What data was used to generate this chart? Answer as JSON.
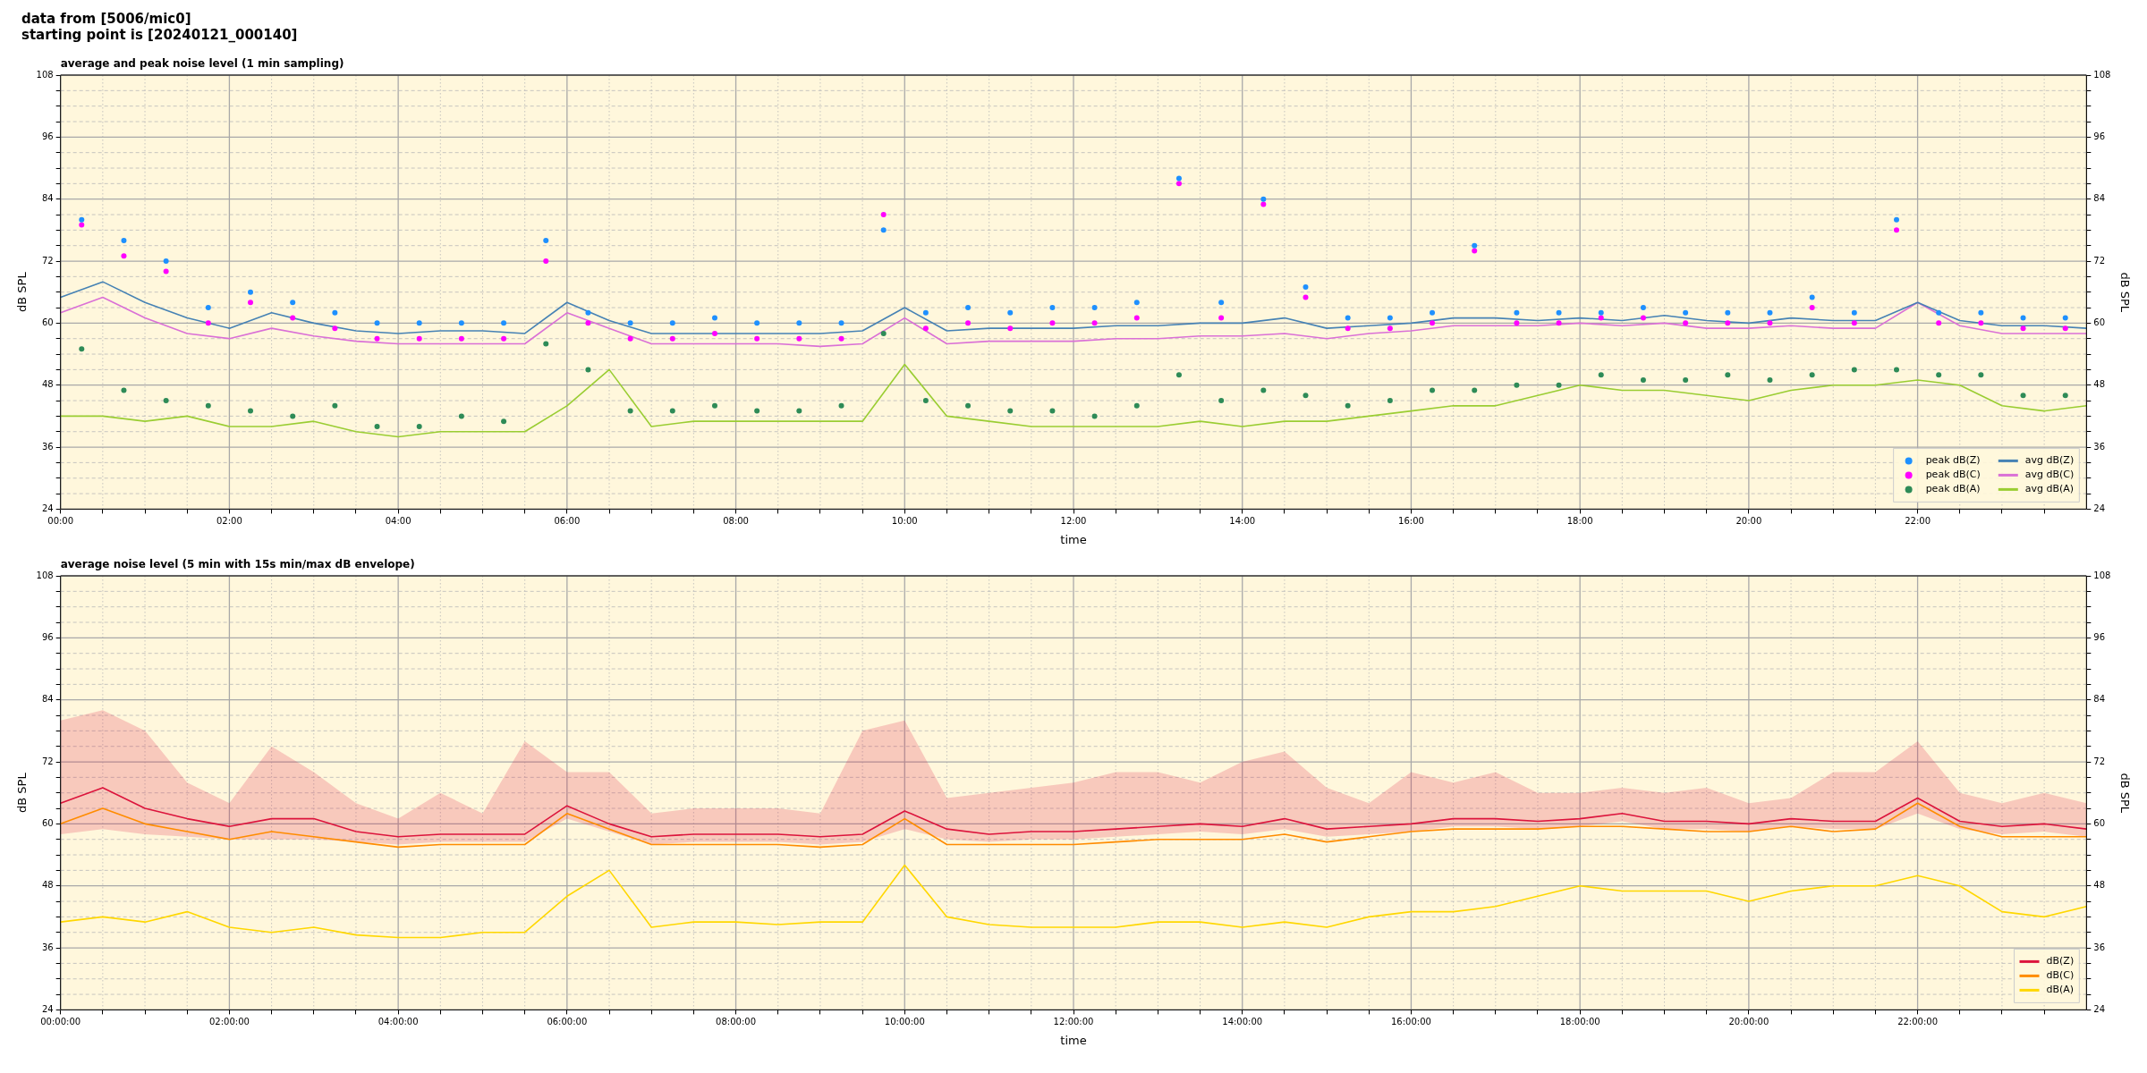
{
  "chart_data": [
    {
      "type": "line",
      "title": "average and peak noise level (1 min sampling)",
      "annotations": [
        "data from [5006/mic0]",
        "starting point is [20240121_000140]"
      ],
      "xlabel": "time",
      "ylabel": "dB SPL",
      "y2label": "dB SPL",
      "x": [
        0,
        0.5,
        1,
        1.5,
        2,
        2.5,
        3,
        3.5,
        4,
        4.5,
        5,
        5.5,
        6,
        6.5,
        7,
        7.5,
        8,
        8.5,
        9,
        9.5,
        10,
        10.5,
        11,
        11.5,
        12,
        12.5,
        13,
        13.5,
        14,
        14.5,
        15,
        15.5,
        16,
        16.5,
        17,
        17.5,
        18,
        18.5,
        19,
        19.5,
        20,
        20.5,
        21,
        21.5,
        22,
        22.5,
        23,
        23.5,
        24
      ],
      "xlim": [
        0,
        24
      ],
      "ylim": [
        24,
        108
      ],
      "y2lim": [
        24,
        108
      ],
      "xticks": [
        {
          "value": 0,
          "label": "00:00"
        },
        {
          "value": 0.5,
          "label": null
        },
        {
          "value": 1,
          "label": null
        },
        {
          "value": 1.5,
          "label": null
        },
        {
          "value": 2,
          "label": "02:00"
        },
        {
          "value": 2.5,
          "label": null
        },
        {
          "value": 3,
          "label": null
        },
        {
          "value": 3.5,
          "label": null
        },
        {
          "value": 4,
          "label": "04:00"
        },
        {
          "value": 4.5,
          "label": null
        },
        {
          "value": 5,
          "label": null
        },
        {
          "value": 5.5,
          "label": null
        },
        {
          "value": 6,
          "label": "06:00"
        },
        {
          "value": 6.5,
          "label": null
        },
        {
          "value": 7,
          "label": null
        },
        {
          "value": 7.5,
          "label": null
        },
        {
          "value": 8,
          "label": "08:00"
        },
        {
          "value": 8.5,
          "label": null
        },
        {
          "value": 9,
          "label": null
        },
        {
          "value": 9.5,
          "label": null
        },
        {
          "value": 10,
          "label": "10:00"
        },
        {
          "value": 10.5,
          "label": null
        },
        {
          "value": 11,
          "label": null
        },
        {
          "value": 11.5,
          "label": null
        },
        {
          "value": 12,
          "label": "12:00"
        },
        {
          "value": 12.5,
          "label": null
        },
        {
          "value": 13,
          "label": null
        },
        {
          "value": 13.5,
          "label": null
        },
        {
          "value": 14,
          "label": "14:00"
        },
        {
          "value": 14.5,
          "label": null
        },
        {
          "value": 15,
          "label": null
        },
        {
          "value": 15.5,
          "label": null
        },
        {
          "value": 16,
          "label": "16:00"
        },
        {
          "value": 16.5,
          "label": null
        },
        {
          "value": 17,
          "label": null
        },
        {
          "value": 17.5,
          "label": null
        },
        {
          "value": 18,
          "label": "18:00"
        },
        {
          "value": 18.5,
          "label": null
        },
        {
          "value": 19,
          "label": null
        },
        {
          "value": 19.5,
          "label": null
        },
        {
          "value": 20,
          "label": "20:00"
        },
        {
          "value": 20.5,
          "label": null
        },
        {
          "value": 21,
          "label": null
        },
        {
          "value": 21.5,
          "label": null
        },
        {
          "value": 22,
          "label": "22:00"
        },
        {
          "value": 22.5,
          "label": null
        },
        {
          "value": 23,
          "label": null
        },
        {
          "value": 23.5,
          "label": null
        }
      ],
      "yticks": [
        24,
        {
          "value": 27,
          "label": null
        },
        {
          "value": 30,
          "label": null
        },
        {
          "value": 33,
          "label": null
        },
        36,
        {
          "value": 39,
          "label": null
        },
        {
          "value": 42,
          "label": null
        },
        {
          "value": 45,
          "label": null
        },
        48,
        {
          "value": 51,
          "label": null
        },
        {
          "value": 54,
          "label": null
        },
        {
          "value": 57,
          "label": null
        },
        60,
        {
          "value": 63,
          "label": null
        },
        {
          "value": 66,
          "label": null
        },
        {
          "value": 69,
          "label": null
        },
        72,
        {
          "value": 75,
          "label": null
        },
        {
          "value": 78,
          "label": null
        },
        {
          "value": 81,
          "label": null
        },
        84,
        {
          "value": 87,
          "label": null
        },
        {
          "value": 90,
          "label": null
        },
        {
          "value": 93,
          "label": null
        },
        96,
        {
          "value": 99,
          "label": null
        },
        {
          "value": 102,
          "label": null
        },
        {
          "value": 105,
          "label": null
        },
        108
      ],
      "y2ticks": [
        24,
        {
          "value": 27,
          "label": null
        },
        {
          "value": 30,
          "label": null
        },
        {
          "value": 33,
          "label": null
        },
        36,
        {
          "value": 39,
          "label": null
        },
        {
          "value": 42,
          "label": null
        },
        {
          "value": 45,
          "label": null
        },
        48,
        {
          "value": 51,
          "label": null
        },
        {
          "value": 54,
          "label": null
        },
        {
          "value": 57,
          "label": null
        },
        60,
        {
          "value": 63,
          "label": null
        },
        {
          "value": 66,
          "label": null
        },
        {
          "value": 69,
          "label": null
        },
        72,
        {
          "value": 75,
          "label": null
        },
        {
          "value": 78,
          "label": null
        },
        {
          "value": 81,
          "label": null
        },
        84,
        {
          "value": 87,
          "label": null
        },
        {
          "value": 90,
          "label": null
        },
        {
          "value": 93,
          "label": null
        },
        96,
        {
          "value": 99,
          "label": null
        },
        {
          "value": 102,
          "label": null
        },
        {
          "value": 105,
          "label": null
        },
        108
      ],
      "grid": true,
      "legend": "bottom right",
      "series": [
        {
          "name": "peak dB(Z)",
          "type": "scatter",
          "marker": "circle",
          "color": "#1e90ff",
          "x": [
            0.25,
            0.75,
            1.25,
            1.75,
            2.25,
            2.75,
            3.25,
            3.75,
            4.25,
            4.75,
            5.25,
            5.75,
            6.25,
            6.75,
            7.25,
            7.75,
            8.25,
            8.75,
            9.25,
            9.75,
            10.25,
            10.75,
            11.25,
            11.75,
            12.25,
            12.75,
            13.25,
            13.75,
            14.25,
            14.75,
            15.25,
            15.75,
            16.25,
            16.75,
            17.25,
            17.75,
            18.25,
            18.75,
            19.25,
            19.75,
            20.25,
            20.75,
            21.25,
            21.75,
            22.25,
            22.75,
            23.25,
            23.75
          ],
          "values": [
            80,
            76,
            72,
            63,
            66,
            64,
            62,
            60,
            60,
            60,
            60,
            76,
            62,
            60,
            60,
            61,
            60,
            60,
            60,
            78,
            62,
            63,
            62,
            63,
            63,
            64,
            88,
            64,
            84,
            67,
            61,
            61,
            62,
            75,
            62,
            62,
            62,
            63,
            62,
            62,
            62,
            65,
            62,
            80,
            62,
            62,
            61,
            61
          ]
        },
        {
          "name": "peak dB(C)",
          "type": "scatter",
          "marker": "circle",
          "color": "#ff00ff",
          "x": [
            0.25,
            0.75,
            1.25,
            1.75,
            2.25,
            2.75,
            3.25,
            3.75,
            4.25,
            4.75,
            5.25,
            5.75,
            6.25,
            6.75,
            7.25,
            7.75,
            8.25,
            8.75,
            9.25,
            9.75,
            10.25,
            10.75,
            11.25,
            11.75,
            12.25,
            12.75,
            13.25,
            13.75,
            14.25,
            14.75,
            15.25,
            15.75,
            16.25,
            16.75,
            17.25,
            17.75,
            18.25,
            18.75,
            19.25,
            19.75,
            20.25,
            20.75,
            21.25,
            21.75,
            22.25,
            22.75,
            23.25,
            23.75
          ],
          "values": [
            79,
            73,
            70,
            60,
            64,
            61,
            59,
            57,
            57,
            57,
            57,
            72,
            60,
            57,
            57,
            58,
            57,
            57,
            57,
            81,
            59,
            60,
            59,
            60,
            60,
            61,
            87,
            61,
            83,
            65,
            59,
            59,
            60,
            74,
            60,
            60,
            61,
            61,
            60,
            60,
            60,
            63,
            60,
            78,
            60,
            60,
            59,
            59
          ]
        },
        {
          "name": "peak dB(A)",
          "type": "scatter",
          "marker": "circle",
          "color": "#2e8b57",
          "x": [
            0.25,
            0.75,
            1.25,
            1.75,
            2.25,
            2.75,
            3.25,
            3.75,
            4.25,
            4.75,
            5.25,
            5.75,
            6.25,
            6.75,
            7.25,
            7.75,
            8.25,
            8.75,
            9.25,
            9.75,
            10.25,
            10.75,
            11.25,
            11.75,
            12.25,
            12.75,
            13.25,
            13.75,
            14.25,
            14.75,
            15.25,
            15.75,
            16.25,
            16.75,
            17.25,
            17.75,
            18.25,
            18.75,
            19.25,
            19.75,
            20.25,
            20.75,
            21.25,
            21.75,
            22.25,
            22.75,
            23.25,
            23.75
          ],
          "values": [
            55,
            47,
            45,
            44,
            43,
            42,
            44,
            40,
            40,
            42,
            41,
            56,
            51,
            43,
            43,
            44,
            43,
            43,
            44,
            58,
            45,
            44,
            43,
            43,
            42,
            44,
            50,
            45,
            47,
            46,
            44,
            45,
            47,
            47,
            48,
            48,
            50,
            49,
            49,
            50,
            49,
            50,
            51,
            51,
            50,
            50,
            46,
            46
          ]
        },
        {
          "name": "avg dB(Z)",
          "type": "line",
          "color": "#4682b4",
          "values": [
            65,
            68,
            64,
            61,
            59,
            62,
            60,
            58.5,
            58,
            58.5,
            58.5,
            58,
            64,
            60.5,
            58,
            58,
            58,
            58,
            58,
            58.5,
            63,
            58.5,
            59,
            59,
            59,
            59.5,
            59.5,
            60,
            60,
            61,
            59,
            59.5,
            60,
            61,
            61,
            60.5,
            61,
            60.5,
            61.5,
            60.5,
            60,
            61,
            60.5,
            60.5,
            64,
            60.5,
            59.5,
            59.5,
            59
          ]
        },
        {
          "name": "avg dB(C)",
          "type": "line",
          "color": "#da70d6",
          "values": [
            62,
            65,
            61,
            58,
            57,
            59,
            57.5,
            56.5,
            56,
            56,
            56,
            56,
            62,
            59,
            56,
            56,
            56,
            56,
            55.5,
            56,
            61,
            56,
            56.5,
            56.5,
            56.5,
            57,
            57,
            57.5,
            57.5,
            58,
            57,
            58,
            58.5,
            59.5,
            59.5,
            59.5,
            60,
            59.5,
            60,
            59,
            59,
            59.5,
            59,
            59,
            64,
            59.5,
            58,
            58,
            58
          ]
        },
        {
          "name": "avg dB(A)",
          "type": "line",
          "color": "#9acd32",
          "values": [
            42,
            42,
            41,
            42,
            40,
            40,
            41,
            39,
            38,
            39,
            39,
            39,
            44,
            51,
            40,
            41,
            41,
            41,
            41,
            41,
            52,
            42,
            41,
            40,
            40,
            40,
            40,
            41,
            40,
            41,
            41,
            42,
            43,
            44,
            44,
            46,
            48,
            47,
            47,
            46,
            45,
            47,
            48,
            48,
            49,
            48,
            44,
            43,
            44
          ]
        }
      ]
    },
    {
      "type": "line",
      "title": "average noise level (5 min with 15s min/max dB envelope)",
      "xlabel": "time",
      "ylabel": "dB SPL",
      "y2label": "dB SPL",
      "x": [
        0,
        0.5,
        1,
        1.5,
        2,
        2.5,
        3,
        3.5,
        4,
        4.5,
        5,
        5.5,
        6,
        6.5,
        7,
        7.5,
        8,
        8.5,
        9,
        9.5,
        10,
        10.5,
        11,
        11.5,
        12,
        12.5,
        13,
        13.5,
        14,
        14.5,
        15,
        15.5,
        16,
        16.5,
        17,
        17.5,
        18,
        18.5,
        19,
        19.5,
        20,
        20.5,
        21,
        21.5,
        22,
        22.5,
        23,
        23.5,
        24
      ],
      "xlim": [
        0,
        24
      ],
      "ylim": [
        24,
        108
      ],
      "y2lim": [
        24,
        108
      ],
      "xticks": [
        {
          "value": 0,
          "label": "00:00:00"
        },
        {
          "value": 0.5,
          "label": null
        },
        {
          "value": 1,
          "label": null
        },
        {
          "value": 1.5,
          "label": null
        },
        {
          "value": 2,
          "label": "02:00:00"
        },
        {
          "value": 2.5,
          "label": null
        },
        {
          "value": 3,
          "label": null
        },
        {
          "value": 3.5,
          "label": null
        },
        {
          "value": 4,
          "label": "04:00:00"
        },
        {
          "value": 4.5,
          "label": null
        },
        {
          "value": 5,
          "label": null
        },
        {
          "value": 5.5,
          "label": null
        },
        {
          "value": 6,
          "label": "06:00:00"
        },
        {
          "value": 6.5,
          "label": null
        },
        {
          "value": 7,
          "label": null
        },
        {
          "value": 7.5,
          "label": null
        },
        {
          "value": 8,
          "label": "08:00:00"
        },
        {
          "value": 8.5,
          "label": null
        },
        {
          "value": 9,
          "label": null
        },
        {
          "value": 9.5,
          "label": null
        },
        {
          "value": 10,
          "label": "10:00:00"
        },
        {
          "value": 10.5,
          "label": null
        },
        {
          "value": 11,
          "label": null
        },
        {
          "value": 11.5,
          "label": null
        },
        {
          "value": 12,
          "label": "12:00:00"
        },
        {
          "value": 12.5,
          "label": null
        },
        {
          "value": 13,
          "label": null
        },
        {
          "value": 13.5,
          "label": null
        },
        {
          "value": 14,
          "label": "14:00:00"
        },
        {
          "value": 14.5,
          "label": null
        },
        {
          "value": 15,
          "label": null
        },
        {
          "value": 15.5,
          "label": null
        },
        {
          "value": 16,
          "label": "16:00:00"
        },
        {
          "value": 16.5,
          "label": null
        },
        {
          "value": 17,
          "label": null
        },
        {
          "value": 17.5,
          "label": null
        },
        {
          "value": 18,
          "label": "18:00:00"
        },
        {
          "value": 18.5,
          "label": null
        },
        {
          "value": 19,
          "label": null
        },
        {
          "value": 19.5,
          "label": null
        },
        {
          "value": 20,
          "label": "20:00:00"
        },
        {
          "value": 20.5,
          "label": null
        },
        {
          "value": 21,
          "label": null
        },
        {
          "value": 21.5,
          "label": null
        },
        {
          "value": 22,
          "label": "22:00:00"
        },
        {
          "value": 22.5,
          "label": null
        },
        {
          "value": 23,
          "label": null
        },
        {
          "value": 23.5,
          "label": null
        }
      ],
      "yticks": [
        24,
        {
          "value": 27,
          "label": null
        },
        {
          "value": 30,
          "label": null
        },
        {
          "value": 33,
          "label": null
        },
        36,
        {
          "value": 39,
          "label": null
        },
        {
          "value": 42,
          "label": null
        },
        {
          "value": 45,
          "label": null
        },
        48,
        {
          "value": 51,
          "label": null
        },
        {
          "value": 54,
          "label": null
        },
        {
          "value": 57,
          "label": null
        },
        60,
        {
          "value": 63,
          "label": null
        },
        {
          "value": 66,
          "label": null
        },
        {
          "value": 69,
          "label": null
        },
        72,
        {
          "value": 75,
          "label": null
        },
        {
          "value": 78,
          "label": null
        },
        {
          "value": 81,
          "label": null
        },
        84,
        {
          "value": 87,
          "label": null
        },
        {
          "value": 90,
          "label": null
        },
        {
          "value": 93,
          "label": null
        },
        96,
        {
          "value": 99,
          "label": null
        },
        {
          "value": 102,
          "label": null
        },
        {
          "value": 105,
          "label": null
        },
        108
      ],
      "y2ticks": [
        24,
        {
          "value": 27,
          "label": null
        },
        {
          "value": 30,
          "label": null
        },
        {
          "value": 33,
          "label": null
        },
        36,
        {
          "value": 39,
          "label": null
        },
        {
          "value": 42,
          "label": null
        },
        {
          "value": 45,
          "label": null
        },
        48,
        {
          "value": 51,
          "label": null
        },
        {
          "value": 54,
          "label": null
        },
        {
          "value": 57,
          "label": null
        },
        60,
        {
          "value": 63,
          "label": null
        },
        {
          "value": 66,
          "label": null
        },
        {
          "value": 69,
          "label": null
        },
        72,
        {
          "value": 75,
          "label": null
        },
        {
          "value": 78,
          "label": null
        },
        {
          "value": 81,
          "label": null
        },
        84,
        {
          "value": 87,
          "label": null
        },
        {
          "value": 90,
          "label": null
        },
        {
          "value": 93,
          "label": null
        },
        96,
        {
          "value": 99,
          "label": null
        },
        {
          "value": 102,
          "label": null
        },
        {
          "value": 105,
          "label": null
        },
        108
      ],
      "grid": true,
      "legend": "bottom right",
      "series": [
        {
          "name": "dB(Z)",
          "color": "#dc143c",
          "values": [
            64,
            67,
            63,
            61,
            59.5,
            61,
            61,
            58.5,
            57.5,
            58,
            58,
            58,
            63.5,
            60,
            57.5,
            58,
            58,
            58,
            57.5,
            58,
            62.5,
            59,
            58,
            58.5,
            58.5,
            59,
            59.5,
            60,
            59.5,
            61,
            59,
            59.5,
            60,
            61,
            61,
            60.5,
            61,
            62,
            60.5,
            60.5,
            60,
            61,
            60.5,
            60.5,
            65,
            60.5,
            59.5,
            60,
            59
          ],
          "lower": [
            58,
            59,
            58,
            57.5,
            57,
            57,
            57,
            56.5,
            56,
            56.5,
            56.5,
            56.5,
            61,
            58.5,
            56,
            56.5,
            56.5,
            56.5,
            56,
            56.5,
            59,
            57,
            56.5,
            57,
            57,
            57.5,
            58,
            58.5,
            58,
            59,
            57.5,
            58,
            58.5,
            59.5,
            59.5,
            59,
            59.5,
            60.5,
            59,
            59,
            58.5,
            59.5,
            59,
            59,
            62,
            59,
            58,
            58.5,
            57.5
          ],
          "upper": [
            80,
            82,
            78,
            68,
            64,
            75,
            70,
            64,
            61,
            66,
            62,
            76,
            70,
            70,
            62,
            63,
            63,
            63,
            62,
            78,
            80,
            65,
            66,
            67,
            68,
            70,
            70,
            68,
            72,
            74,
            67,
            64,
            70,
            68,
            70,
            66,
            66,
            67,
            66,
            67,
            64,
            65,
            70,
            70,
            76,
            66,
            64,
            66,
            64
          ]
        },
        {
          "name": "dB(C)",
          "color": "#ff8c00",
          "values": [
            60,
            63,
            60,
            58.5,
            57,
            58.5,
            57.5,
            56.5,
            55.5,
            56,
            56,
            56,
            62,
            59,
            56,
            56,
            56,
            56,
            55.5,
            56,
            61,
            56,
            56,
            56,
            56,
            56.5,
            57,
            57,
            57,
            58,
            56.5,
            57.5,
            58.5,
            59,
            59,
            59,
            59.5,
            59.5,
            59,
            58.5,
            58.5,
            59.5,
            58.5,
            59,
            64,
            59.5,
            57.5,
            57.5,
            57.5
          ]
        },
        {
          "name": "dB(A)",
          "color": "#ffd700",
          "values": [
            41,
            42,
            41,
            43,
            40,
            39,
            40,
            38.5,
            38,
            38,
            39,
            39,
            46,
            51,
            40,
            41,
            41,
            40.5,
            41,
            41,
            52,
            42,
            40.5,
            40,
            40,
            40,
            41,
            41,
            40,
            41,
            40,
            42,
            43,
            43,
            44,
            46,
            48,
            47,
            47,
            47,
            45,
            47,
            48,
            48,
            50,
            48,
            43,
            42,
            44
          ]
        }
      ]
    }
  ]
}
